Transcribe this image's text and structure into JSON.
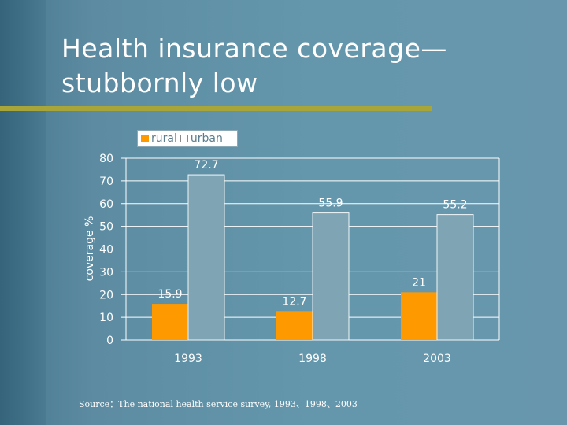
{
  "slide": {
    "title_line1": "Health insurance coverage—",
    "title_line2": "stubbornly low",
    "source": "Source：The national health service survey, 1993、1998、2003"
  },
  "colors": {
    "rural": "#ff9900",
    "urban": "#7fa5b5",
    "accent": "#a8a63a"
  },
  "chart_data": {
    "type": "bar",
    "categories": [
      "1993",
      "1998",
      "2003"
    ],
    "series": [
      {
        "name": "rural",
        "values": [
          15.9,
          12.7,
          21
        ],
        "labels": [
          "15.9",
          "12.7",
          "21"
        ]
      },
      {
        "name": "urban",
        "values": [
          72.7,
          55.9,
          55.2
        ],
        "labels": [
          "72.7",
          "55.9",
          "55.2"
        ]
      }
    ],
    "title": "",
    "xlabel": "",
    "ylabel": "coverage %",
    "ylim": [
      0,
      80
    ],
    "yticks": [
      "0",
      "10",
      "20",
      "30",
      "40",
      "50",
      "60",
      "70",
      "80"
    ],
    "grid": true,
    "legend": "top"
  }
}
